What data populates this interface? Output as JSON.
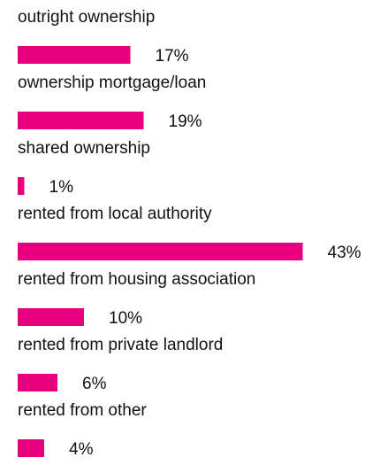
{
  "chart_data": {
    "type": "bar",
    "orientation": "horizontal",
    "color": "#e6007e",
    "categories": [
      "outright ownership",
      "ownership mortgage/loan",
      "shared ownership",
      "rented from local authority",
      "rented from housing association",
      "rented from private landlord",
      "rented from other"
    ],
    "values": [
      17,
      19,
      1,
      43,
      10,
      6,
      4
    ],
    "value_labels": [
      "17%",
      "19%",
      "1%",
      "43%",
      "10%",
      "6%",
      "4%"
    ]
  }
}
